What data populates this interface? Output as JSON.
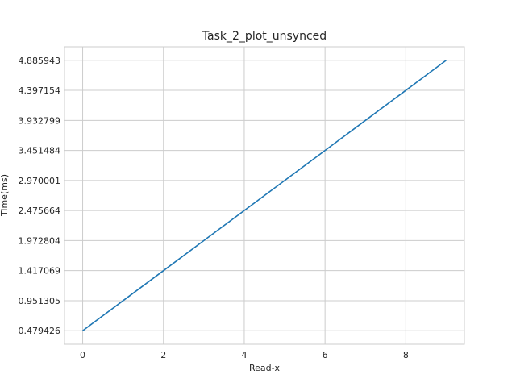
{
  "chart_data": {
    "type": "line",
    "title": "Task_2_plot_unsynced",
    "xlabel": "Read-x",
    "ylabel": "Time(ms)",
    "x": [
      0,
      1,
      2,
      3,
      4,
      5,
      6,
      7,
      8,
      9
    ],
    "y_categories": [
      "0.479426",
      "0.951305",
      "1.417069",
      "1.972804",
      "2.475664",
      "2.970001",
      "3.451484",
      "3.932799",
      "4.397154",
      "4.885943"
    ],
    "series": [
      {
        "y": [
          "0.479426",
          "0.951305",
          "1.417069",
          "1.972804",
          "2.475664",
          "2.970001",
          "3.451484",
          "3.932799",
          "4.397154",
          "4.885943"
        ]
      }
    ],
    "xlim": [
      -0.45,
      9.45
    ],
    "x_ticks": [
      0,
      2,
      4,
      6,
      8
    ],
    "grid": true,
    "line_color": "#1f77b4"
  }
}
